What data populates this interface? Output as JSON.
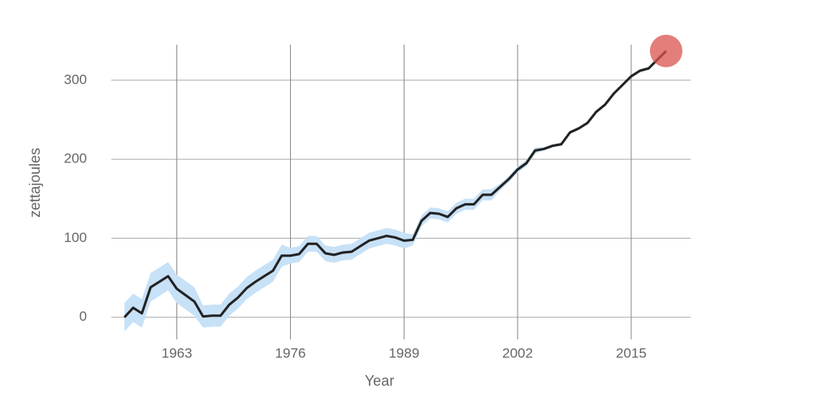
{
  "chart_data": {
    "type": "line",
    "x_label": "Year",
    "y_label": "zettajoules",
    "x": [
      1957,
      1958,
      1959,
      1960,
      1961,
      1962,
      1963,
      1964,
      1965,
      1966,
      1967,
      1968,
      1969,
      1970,
      1971,
      1972,
      1973,
      1974,
      1975,
      1976,
      1977,
      1978,
      1979,
      1980,
      1981,
      1982,
      1983,
      1984,
      1985,
      1986,
      1987,
      1988,
      1989,
      1990,
      1991,
      1992,
      1993,
      1994,
      1995,
      1996,
      1997,
      1998,
      1999,
      2000,
      2001,
      2002,
      2003,
      2004,
      2005,
      2006,
      2007,
      2008,
      2009,
      2010,
      2011,
      2012,
      2013,
      2014,
      2015,
      2016,
      2017,
      2018,
      2019
    ],
    "values": [
      0,
      12,
      5,
      38,
      45,
      52,
      36,
      28,
      20,
      1,
      2,
      2,
      16,
      25,
      37,
      45,
      52,
      59,
      78,
      78,
      80,
      93,
      93,
      81,
      79,
      82,
      83,
      90,
      97,
      100,
      103,
      101,
      97,
      98,
      122,
      132,
      131,
      127,
      138,
      143,
      143,
      155,
      155,
      165,
      175,
      187,
      195,
      211,
      213,
      217,
      219,
      234,
      239,
      246,
      260,
      269,
      283,
      294,
      305,
      312,
      315,
      326,
      337
    ],
    "lower": [
      -18,
      -6,
      -13,
      20,
      27,
      34,
      18,
      10,
      2,
      -13,
      -12,
      -12,
      2,
      11,
      23,
      31,
      38,
      45,
      64,
      68,
      70,
      83,
      83,
      71,
      69,
      72,
      73,
      80,
      87,
      90,
      93,
      91,
      87,
      91,
      115,
      125,
      124,
      120,
      131,
      136,
      136,
      148,
      148,
      161,
      171,
      183,
      191,
      207,
      211,
      215,
      217,
      232,
      237,
      244,
      258,
      267,
      281,
      292,
      303,
      310,
      313,
      324,
      335
    ],
    "upper": [
      18,
      30,
      23,
      56,
      63,
      70,
      54,
      46,
      38,
      15,
      16,
      16,
      30,
      39,
      51,
      59,
      66,
      73,
      92,
      88,
      90,
      103,
      103,
      91,
      89,
      92,
      93,
      100,
      107,
      110,
      113,
      111,
      107,
      105,
      129,
      139,
      138,
      134,
      145,
      150,
      150,
      162,
      162,
      169,
      179,
      191,
      199,
      215,
      215,
      219,
      221,
      236,
      241,
      248,
      262,
      271,
      285,
      296,
      307,
      314,
      317,
      328,
      339
    ],
    "color": "#222222",
    "band_color": "#c7e1f7",
    "highlight_color": "#d9534f",
    "highlight_last": true,
    "xlim": [
      1955.5,
      2021.8
    ],
    "ylim": [
      -28,
      345
    ],
    "xticks": [
      1963,
      1976,
      1989,
      2002,
      2015
    ],
    "yticks": [
      0,
      100,
      200,
      300
    ],
    "grid": true
  }
}
